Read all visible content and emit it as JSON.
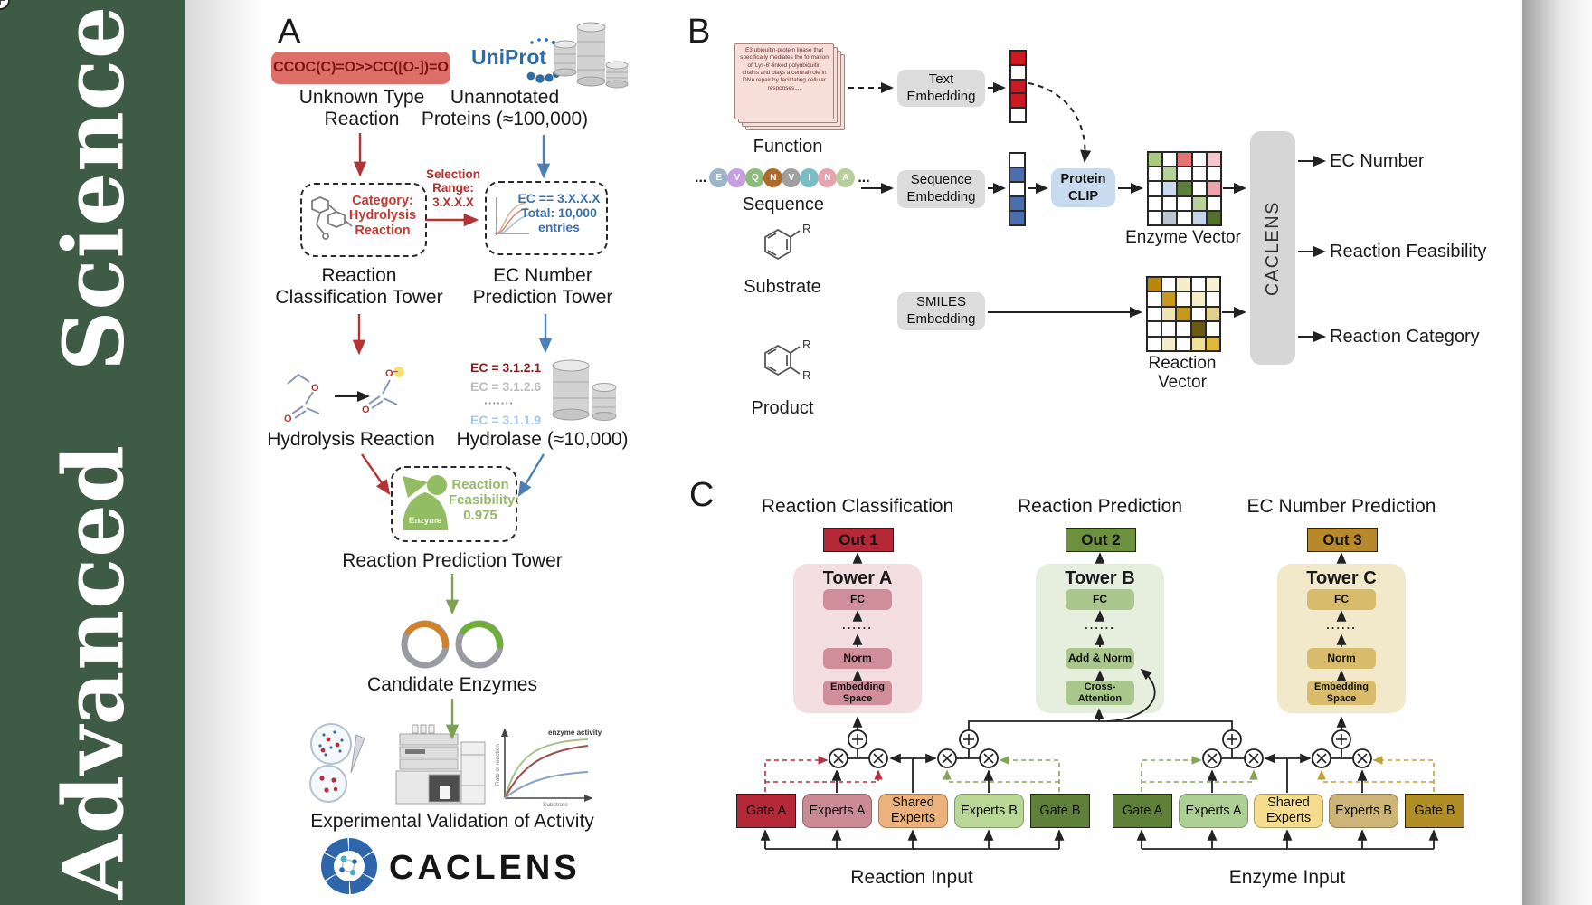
{
  "journal": {
    "name": "Advanced Science"
  },
  "colors": {
    "sidebar": "#3e5b45",
    "smiles_box": "#dd6f68",
    "gray_box": "#dcdcdc",
    "clip_box": "#c8daee",
    "caclens_bar": "#d6d6d6",
    "out1": "#b42837",
    "out2": "#6d903f",
    "out3": "#b8892b",
    "towerA_bg": "#f3dee2",
    "towerA_box": "#d08e9a",
    "towerB_bg": "#e6eedd",
    "towerB_box": "#a9c78c",
    "towerC_bg": "#f2e9cb",
    "towerC_box": "#d9bc6b",
    "r_gate_a": "#b42837",
    "r_experts_a": "#cb8b95",
    "r_shared": "#ecb27c",
    "r_experts_b": "#b9d895",
    "r_gate_b": "#5f8038",
    "e_gate_a": "#5f8038",
    "e_experts_a": "#aed094",
    "e_shared": "#f6dd8d",
    "e_experts_b": "#cdb477",
    "e_gate_b": "#b08e25"
  },
  "a": {
    "label": "A",
    "smiles": "CCOC(C)=O>>CC([O-])=O",
    "unknown": "Unknown Type Reaction",
    "uniprot": "UniProt",
    "unannotated": "Unannotated Proteins (≈100,000)",
    "selection": "Selection Range: 3.X.X.X",
    "category": "Category: Hydrolysis Reaction",
    "ec_range": "EC == 3.X.X.X Total: 10,000 entries",
    "rc_tower": "Reaction Classification Tower",
    "ec_tower": "EC Number Prediction Tower",
    "hydrolysis": "Hydrolysis Reaction",
    "hydrolase": "Hydrolase (≈10,000)",
    "scheme": {
      "o1": "O",
      "o2": "O",
      "o3": "O",
      "o_minus": "O⁻"
    },
    "ec_list": [
      {
        "text": "EC = 3.1.2.1",
        "color": "#8b1f1f"
      },
      {
        "text": "EC = 3.1.2.6",
        "color": "#bcbcbc"
      },
      {
        "text": "·······",
        "color": "#9a9a9a"
      },
      {
        "text": "EC = 3.1.1.9",
        "color": "#abc7e6"
      }
    ],
    "enzyme_badge": "Enzyme",
    "feasibility": "Reaction Feasibility: 0.975",
    "rp_tower": "Reaction Prediction Tower",
    "candidates": "Candidate Enzymes",
    "validation": "Experimental Validation of Activity",
    "plot": {
      "annotation": "enzyme activity",
      "ylabel": "Rate of reaction",
      "xlabel": "Substrate"
    },
    "brand": "CACLENS"
  },
  "b": {
    "label": "B",
    "function_text": "E3 ubiquitin-protein ligase that specifically mediates the formation of 'Lys-6'-linked polyubiquitin chains and plays a central role in DNA repair by facilitating cellular responses....",
    "function": "Function",
    "ellipsis": "...",
    "residues": [
      {
        "letter": "E",
        "color": "#9db6c9"
      },
      {
        "letter": "V",
        "color": "#c79fe0"
      },
      {
        "letter": "Q",
        "color": "#8cbb7a"
      },
      {
        "letter": "N",
        "color": "#b06a28"
      },
      {
        "letter": "V",
        "color": "#9f9f9f"
      },
      {
        "letter": "I",
        "color": "#79bec6"
      },
      {
        "letter": "N",
        "color": "#e6a3ab"
      },
      {
        "letter": "A",
        "color": "#b7cf9c"
      }
    ],
    "sequence": "Sequence",
    "substrate": "Substrate",
    "product": "Product",
    "r_label": "R",
    "text_embedding": "Text Embedding",
    "sequence_embedding": "Sequence Embedding",
    "smiles_embedding": "SMILES Embedding",
    "protein_clip": "Protein CLIP",
    "text_vector": {
      "cells": [
        "#cc1a20",
        "#ffffff",
        "#cc1a20",
        "#cc1a20",
        "#ffffff"
      ]
    },
    "seq_vector": {
      "cells": [
        "#ffffff",
        "#4a6fae",
        "#ffffff",
        "#4a6fae",
        "#4a6fae"
      ]
    },
    "enzyme_vector": {
      "label": "Enzyme Vector",
      "cells": [
        "#a9c97e",
        "#ffffff",
        "#e57373",
        "#ffffff",
        "#f5c6cb",
        "#ffffff",
        "#b7d296",
        "#ffffff",
        "#ffffff",
        "#ffffff",
        "#ffffff",
        "#c9d9ee",
        "#5e7f3c",
        "#ffffff",
        "#eda5ab",
        "#ffffff",
        "#ffffff",
        "#ffffff",
        "#b7d296",
        "#ffffff",
        "#ffffff",
        "#b9c6d1",
        "#ffffff",
        "#c3d6ec",
        "#55702d"
      ]
    },
    "reaction_vector": {
      "label": "Reaction Vector",
      "cells": [
        "#b8860b",
        "#ffffff",
        "#f5ecc8",
        "#ffffff",
        "#f7f0d2",
        "#ffffff",
        "#c9971c",
        "#ffffff",
        "#f5ecc8",
        "#ffffff",
        "#ffffff",
        "#f0e4b4",
        "#c9971c",
        "#ffffff",
        "#e3cf8e",
        "#ffffff",
        "#ffffff",
        "#ffffff",
        "#6b5a14",
        "#ffffff",
        "#ffffff",
        "#f5ecc8",
        "#ffffff",
        "#f0e09a",
        "#e0b93a"
      ]
    },
    "caclens_bar": "CACLENS",
    "outputs": [
      "EC Number",
      "Reaction Feasibility",
      "Reaction Category"
    ]
  },
  "c": {
    "label": "C",
    "titles": [
      "Reaction Classification",
      "Reaction Prediction",
      "EC Number Prediction"
    ],
    "towerA": {
      "out": "Out 1",
      "title": "Tower A",
      "fc": "FC",
      "dots": "......",
      "mid": "Norm",
      "bottom": "Embedding Space"
    },
    "towerB": {
      "out": "Out 2",
      "title": "Tower B",
      "fc": "FC",
      "dots": "......",
      "mid": "Add & Norm",
      "bottom": "Cross-Attention"
    },
    "towerC": {
      "out": "Out 3",
      "title": "Tower C",
      "fc": "FC",
      "dots": "......",
      "mid": "Norm",
      "bottom": "Embedding Space"
    },
    "moe_reaction": {
      "gate_a": "Gate A",
      "experts_a": "Experts A",
      "shared": "Shared Experts",
      "experts_b": "Experts B",
      "gate_b": "Gate B",
      "input": "Reaction Input"
    },
    "moe_enzyme": {
      "gate_a": "Gate A",
      "experts_a": "Experts A",
      "shared": "Shared Experts",
      "experts_b": "Experts B",
      "gate_b": "Gate B",
      "input": "Enzyme Input"
    }
  }
}
